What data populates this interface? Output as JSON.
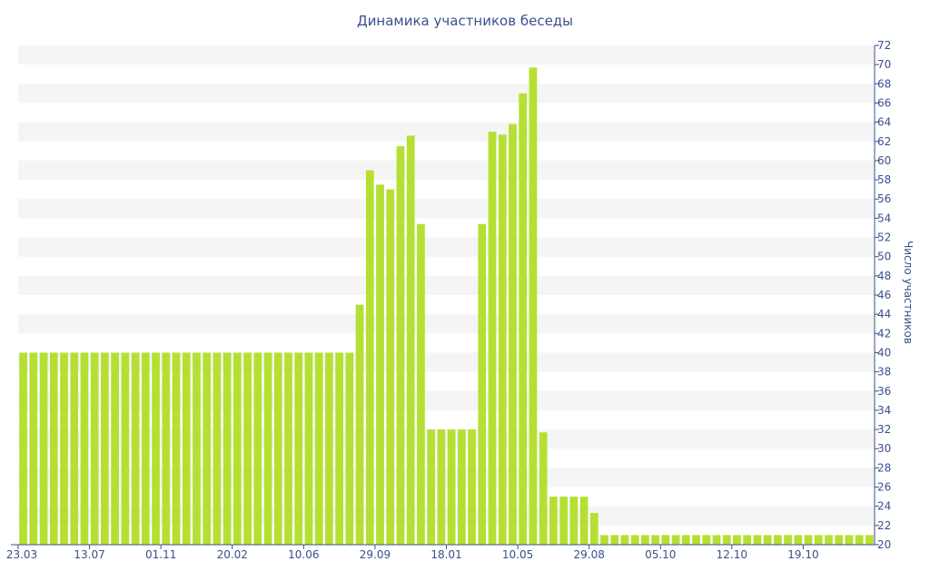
{
  "chart_data": {
    "type": "bar",
    "title": "Динамика участников беседы",
    "ylabel": "Число участников",
    "y_axis_position": "right",
    "ylim": [
      20,
      72
    ],
    "y_ticks": [
      20,
      22,
      24,
      26,
      28,
      30,
      32,
      34,
      36,
      38,
      40,
      42,
      44,
      46,
      48,
      50,
      52,
      54,
      56,
      58,
      60,
      62,
      64,
      66,
      68,
      70,
      72
    ],
    "x_tick_labels": [
      "23.03",
      "13.07",
      "01.11",
      "20.02",
      "10.06",
      "29.09",
      "18.01",
      "10.05",
      "29.08",
      "05.10",
      "12.10",
      "19.10"
    ],
    "x_tick_indices": [
      0,
      7,
      14,
      21,
      28,
      35,
      42,
      49,
      56,
      63,
      70,
      77
    ],
    "values": [
      40,
      40,
      40,
      40,
      40,
      40,
      40,
      40,
      40,
      40,
      40,
      40,
      40,
      40,
      40,
      40,
      40,
      40,
      40,
      40,
      40,
      40,
      40,
      40,
      40,
      40,
      40,
      40,
      40,
      40,
      40,
      40,
      40,
      45,
      59,
      57.5,
      57,
      61.5,
      62.6,
      53.4,
      32,
      32,
      32,
      32,
      32,
      53.4,
      63,
      62.7,
      63.8,
      67,
      69.7,
      31.7,
      25,
      25,
      25,
      25,
      23.3,
      21,
      21,
      21,
      21,
      21,
      21,
      21,
      21,
      21,
      21,
      21,
      21,
      21,
      21,
      21,
      21,
      21,
      21,
      21,
      21,
      21,
      21,
      21,
      21,
      21,
      21,
      21
    ],
    "grid": "alternating horizontal bands",
    "colors": {
      "bar": "#b5e033",
      "band": "#f5f5f5",
      "text": "#3a4f8f",
      "axis": "#3a4f8f"
    }
  }
}
